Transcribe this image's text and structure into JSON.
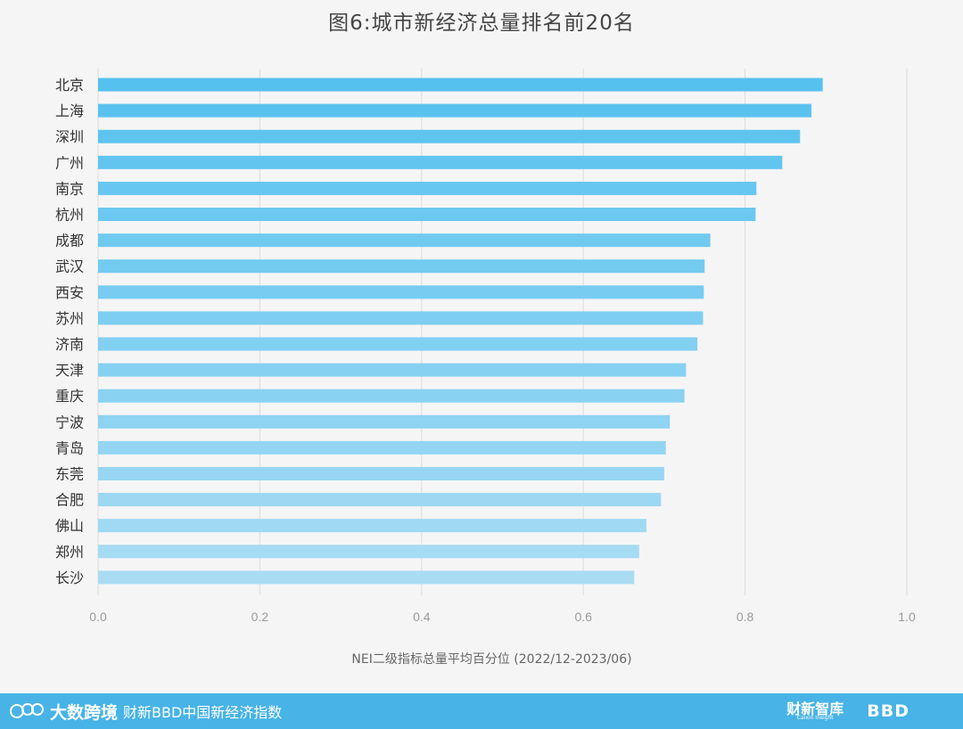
{
  "chart_data": {
    "type": "bar",
    "orientation": "horizontal",
    "title": "图6:城市新经济总量排名前20名",
    "xlabel": "NEI二级指标总量平均百分位 (2022/12-2023/06)",
    "ylabel": "",
    "xlim": [
      0,
      1.0
    ],
    "xticks": [
      "0.0",
      "0.2",
      "0.4",
      "0.6",
      "0.8",
      "1.0"
    ],
    "grid": true,
    "categories": [
      "北京",
      "上海",
      "深圳",
      "广州",
      "南京",
      "杭州",
      "成都",
      "武汉",
      "西安",
      "苏州",
      "济南",
      "天津",
      "重庆",
      "宁波",
      "青岛",
      "东莞",
      "合肥",
      "佛山",
      "郑州",
      "长沙"
    ],
    "values": [
      0.896,
      0.882,
      0.868,
      0.846,
      0.814,
      0.813,
      0.757,
      0.75,
      0.749,
      0.748,
      0.741,
      0.727,
      0.725,
      0.707,
      0.702,
      0.7,
      0.696,
      0.678,
      0.669,
      0.663
    ],
    "colors": {
      "bar_start": "#55c1ef",
      "bar_end": "#a9dcf3",
      "grid": "#dcdcdc",
      "label": "#333333",
      "tick": "#9a9a9a"
    }
  },
  "footer": {
    "brand": "大数跨境",
    "text": "财新BBD中国新经济指数",
    "right_logo_cn": "财新智库",
    "right_logo_en": "Caixin Insight",
    "right_logo_bbd": "BBD"
  }
}
